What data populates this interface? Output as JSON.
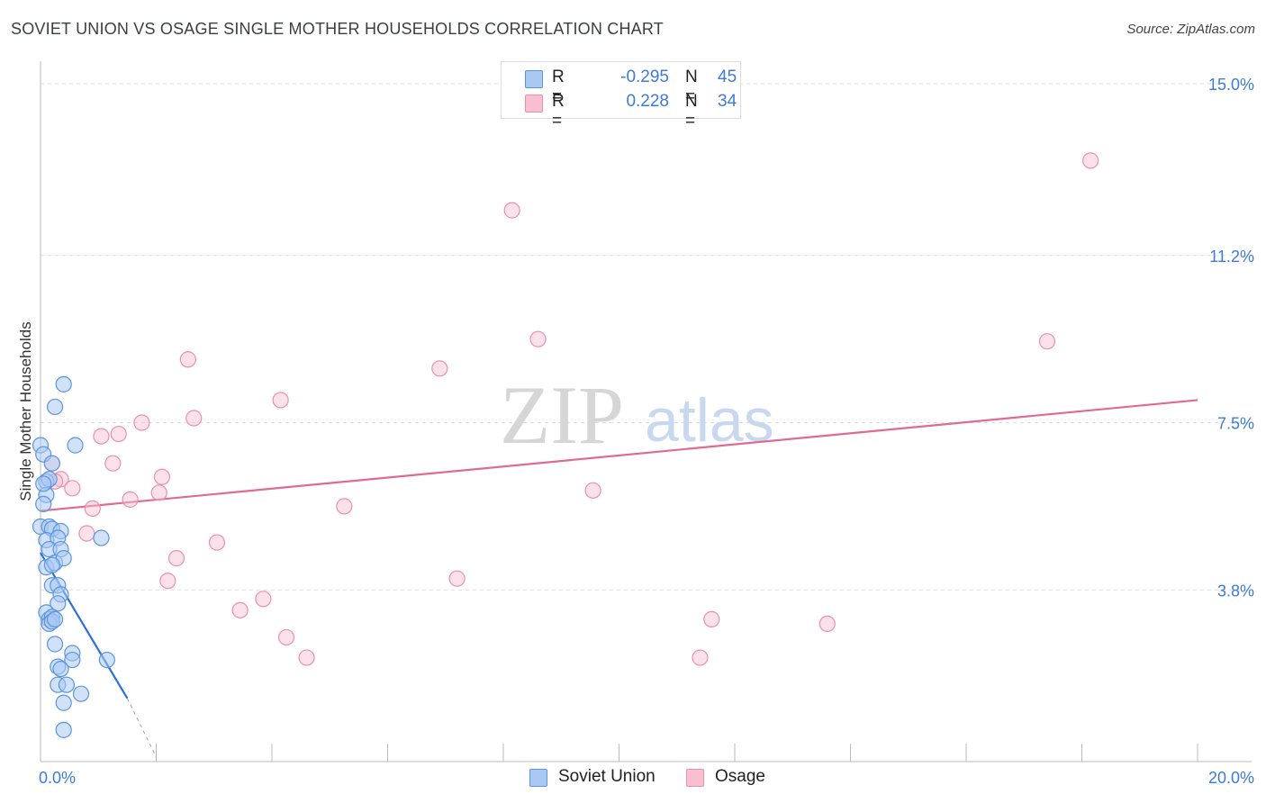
{
  "title": "SOVIET UNION VS OSAGE SINGLE MOTHER HOUSEHOLDS CORRELATION CHART",
  "source": "Source: ZipAtlas.com",
  "watermark": {
    "zip": "ZIP",
    "atlas": "atlas"
  },
  "colors": {
    "soviet_fill": "#a9c8f2",
    "soviet_stroke": "#5b95e0",
    "soviet_line": "#2c72d6",
    "osage_fill": "#f7bfd0",
    "osage_stroke": "#ea8fae",
    "osage_line": "#e06a96",
    "tick_text": "#3d7bd6"
  },
  "legend_box": {
    "rows": [
      {
        "r_label": "R =",
        "r_value": "-0.295",
        "n_label": "N =",
        "n_value": "45"
      },
      {
        "r_label": "R =",
        "r_value": "0.228",
        "n_label": "N =",
        "n_value": "34"
      }
    ]
  },
  "bottom_legend": {
    "soviet": "Soviet Union",
    "osage": "Osage"
  },
  "chart_data": {
    "type": "scatter",
    "title": "SOVIET UNION VS OSAGE SINGLE MOTHER HOUSEHOLDS CORRELATION CHART",
    "xlabel": "",
    "ylabel": "Single Mother Households",
    "xlim": [
      0,
      20
    ],
    "ylim": [
      0,
      15.3
    ],
    "x_tick_labels": [
      "0.0%",
      "20.0%"
    ],
    "y_ticks": [
      3.8,
      7.5,
      11.2,
      15.0
    ],
    "y_tick_labels": [
      "3.8%",
      "7.5%",
      "11.2%",
      "15.0%"
    ],
    "x_minor_ticks": [
      0,
      2,
      4,
      6,
      8,
      10,
      12,
      14,
      16,
      18,
      20
    ],
    "grid": true,
    "legend_position": "top-center",
    "series": [
      {
        "name": "Soviet Union",
        "R": -0.295,
        "N": 45,
        "points": [
          [
            0.0,
            7.0
          ],
          [
            0.05,
            6.8
          ],
          [
            0.1,
            6.2
          ],
          [
            0.15,
            6.25
          ],
          [
            0.2,
            6.6
          ],
          [
            0.1,
            5.9
          ],
          [
            0.05,
            5.7
          ],
          [
            0.0,
            5.2
          ],
          [
            0.15,
            5.2
          ],
          [
            0.2,
            5.15
          ],
          [
            0.35,
            5.1
          ],
          [
            0.1,
            4.9
          ],
          [
            0.3,
            4.95
          ],
          [
            0.15,
            4.7
          ],
          [
            0.35,
            4.7
          ],
          [
            0.1,
            4.3
          ],
          [
            0.25,
            4.4
          ],
          [
            0.4,
            4.5
          ],
          [
            0.2,
            3.9
          ],
          [
            0.3,
            3.9
          ],
          [
            0.35,
            3.7
          ],
          [
            0.3,
            3.5
          ],
          [
            0.1,
            3.3
          ],
          [
            0.15,
            3.15
          ],
          [
            0.2,
            3.2
          ],
          [
            0.15,
            3.05
          ],
          [
            0.2,
            3.1
          ],
          [
            0.25,
            2.6
          ],
          [
            0.55,
            2.4
          ],
          [
            0.55,
            2.25
          ],
          [
            0.3,
            2.1
          ],
          [
            0.35,
            2.05
          ],
          [
            0.3,
            1.7
          ],
          [
            0.45,
            1.7
          ],
          [
            0.7,
            1.5
          ],
          [
            0.4,
            1.3
          ],
          [
            0.4,
            0.7
          ],
          [
            0.4,
            8.35
          ],
          [
            0.25,
            7.85
          ],
          [
            0.6,
            7.0
          ],
          [
            1.05,
            4.95
          ],
          [
            1.15,
            2.25
          ],
          [
            0.05,
            6.15
          ],
          [
            0.2,
            4.35
          ],
          [
            0.25,
            3.15
          ]
        ],
        "trend": {
          "x": [
            0.0,
            1.5
          ],
          "y": [
            4.62,
            1.4
          ],
          "dashed_to": [
            2.0,
            0.1
          ]
        }
      },
      {
        "name": "Osage",
        "R": 0.228,
        "N": 34,
        "points": [
          [
            0.2,
            6.6
          ],
          [
            0.35,
            6.25
          ],
          [
            0.25,
            6.2
          ],
          [
            0.55,
            6.05
          ],
          [
            1.05,
            7.2
          ],
          [
            1.35,
            7.25
          ],
          [
            1.75,
            7.5
          ],
          [
            1.25,
            6.6
          ],
          [
            0.9,
            5.6
          ],
          [
            1.55,
            5.8
          ],
          [
            0.8,
            5.05
          ],
          [
            2.05,
            5.95
          ],
          [
            2.1,
            6.3
          ],
          [
            2.55,
            8.9
          ],
          [
            2.65,
            7.6
          ],
          [
            2.35,
            4.5
          ],
          [
            2.2,
            4.0
          ],
          [
            3.05,
            4.85
          ],
          [
            3.45,
            3.35
          ],
          [
            3.85,
            3.6
          ],
          [
            4.15,
            8.0
          ],
          [
            4.25,
            2.75
          ],
          [
            4.6,
            2.3
          ],
          [
            5.25,
            5.65
          ],
          [
            6.9,
            8.7
          ],
          [
            7.2,
            4.05
          ],
          [
            8.15,
            12.2
          ],
          [
            8.6,
            9.35
          ],
          [
            9.55,
            6.0
          ],
          [
            11.4,
            2.3
          ],
          [
            11.6,
            3.15
          ],
          [
            13.6,
            3.05
          ],
          [
            17.4,
            9.3
          ],
          [
            18.15,
            13.3
          ]
        ],
        "trend": {
          "x": [
            0.0,
            20.0
          ],
          "y": [
            5.55,
            8.0
          ]
        }
      }
    ]
  }
}
